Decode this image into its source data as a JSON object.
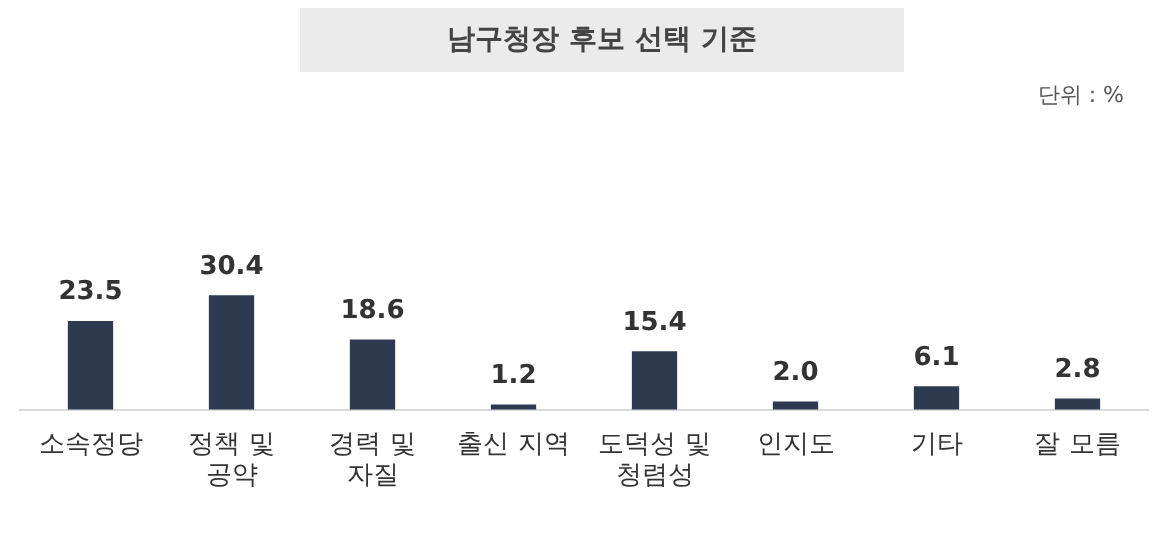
{
  "chart_data": {
    "type": "bar",
    "title": "남구청장 후보 선택 기준",
    "categories": [
      "소속정당",
      "정책 및 공약",
      "경력 및 자질",
      "출신 지역",
      "도덕성 및 청렴성",
      "인지도",
      "기타",
      "잘 모름"
    ],
    "values": [
      23.5,
      30.4,
      18.6,
      1.2,
      15.4,
      2.0,
      6.1,
      2.8
    ],
    "value_labels": [
      "23.5",
      "30.4",
      "18.6",
      "1.2",
      "15.4",
      "2.0",
      "6.1",
      "2.8"
    ],
    "color": "#2d3a4f",
    "grid": false,
    "legend": false,
    "annotations": [
      "단위 : %"
    ]
  }
}
